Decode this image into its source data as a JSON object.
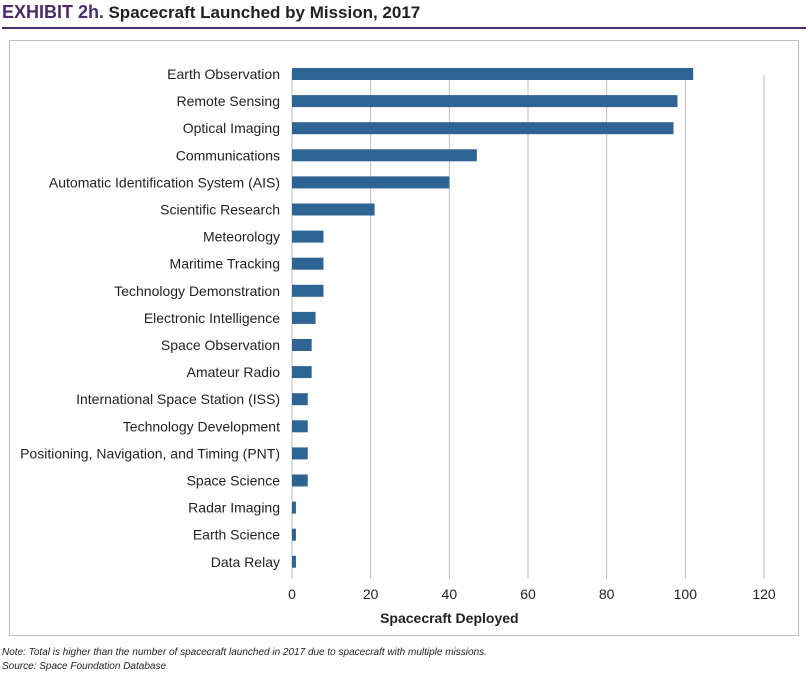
{
  "header": {
    "exhibit_label": "EXHIBIT 2h.",
    "title": "Spacecraft Launched by Mission, 2017"
  },
  "colors": {
    "bar": "#2e6493",
    "accent": "#4b2c6b",
    "grid": "#bcbec0",
    "text": "#231f20"
  },
  "chart_data": {
    "type": "bar",
    "orientation": "horizontal",
    "title": "Spacecraft Launched by Mission, 2017",
    "xlabel": "Spacecraft Deployed",
    "ylabel": "",
    "xlim": [
      0,
      120
    ],
    "xticks": [
      0,
      20,
      40,
      60,
      80,
      100,
      120
    ],
    "grid": true,
    "legend": "none",
    "categories": [
      "Earth Observation",
      "Remote Sensing",
      "Optical Imaging",
      "Communications",
      "Automatic Identification System (AIS)",
      "Scientific Research",
      "Meteorology",
      "Maritime Tracking",
      "Technology Demonstration",
      "Electronic Intelligence",
      "Space Observation",
      "Amateur Radio",
      "International Space Station (ISS)",
      "Technology Development",
      "Positioning, Navigation, and Timing (PNT)",
      "Space Science",
      "Radar Imaging",
      "Earth Science",
      "Data Relay"
    ],
    "values": [
      102,
      98,
      97,
      47,
      40,
      21,
      8,
      8,
      8,
      6,
      5,
      5,
      4,
      4,
      4,
      4,
      1,
      1,
      1
    ]
  },
  "notes": {
    "note": "Note: Total is higher than the number of spacecraft launched in 2017 due to spacecraft with multiple missions.",
    "source": "Source: Space Foundation Database"
  }
}
